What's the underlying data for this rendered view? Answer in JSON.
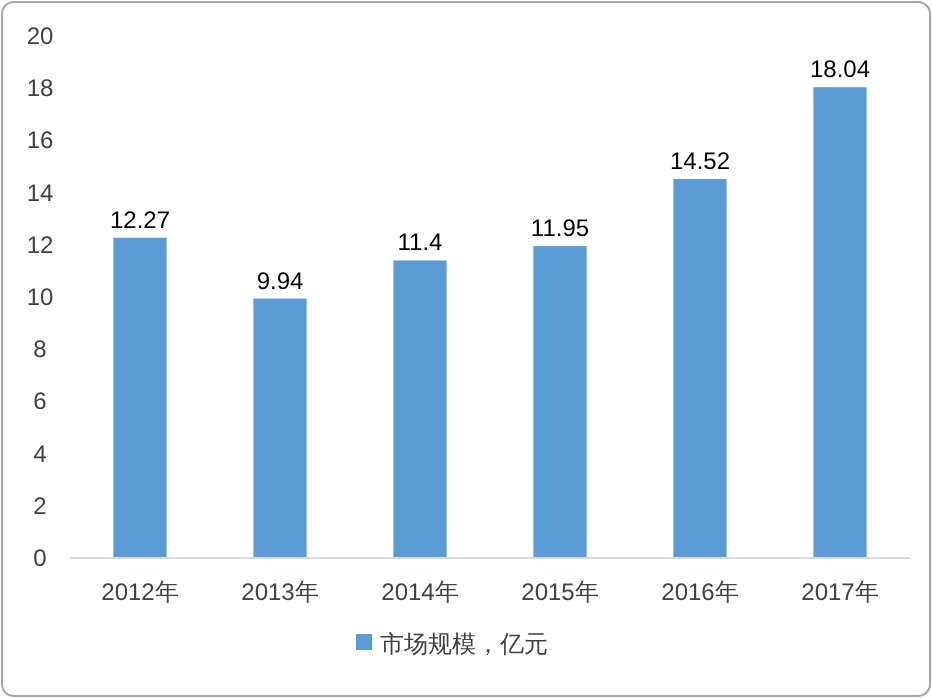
{
  "chart_data": {
    "type": "bar",
    "categories": [
      "2012年",
      "2013年",
      "2014年",
      "2015年",
      "2016年",
      "2017年"
    ],
    "series": [
      {
        "name": "市场规模，亿元",
        "color": "#5b9bd5",
        "values": [
          12.27,
          9.94,
          11.4,
          11.95,
          14.52,
          18.04
        ]
      }
    ],
    "ylim": [
      0,
      20
    ],
    "yticks": [
      0,
      2,
      4,
      6,
      8,
      10,
      12,
      14,
      16,
      18,
      20
    ],
    "data_labels": true,
    "legend": "bottom"
  }
}
